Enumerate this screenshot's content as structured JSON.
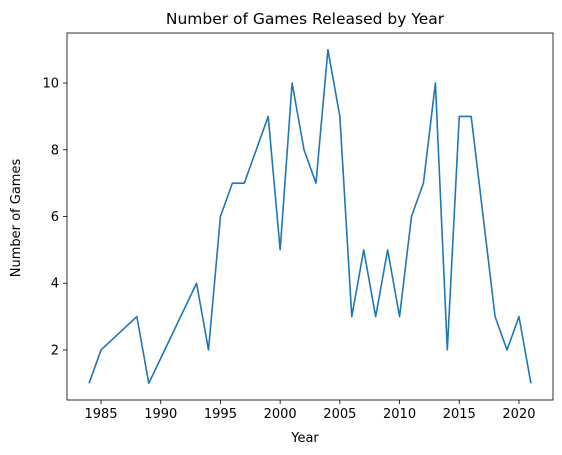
{
  "chart_data": {
    "type": "line",
    "title": "Number of Games Released by Year",
    "xlabel": "Year",
    "ylabel": "Number of Games",
    "xlim": [
      1982.15,
      2022.85
    ],
    "ylim": [
      0.5,
      11.5
    ],
    "x_ticks": [
      1985,
      1990,
      1995,
      2000,
      2005,
      2010,
      2015,
      2020
    ],
    "y_ticks": [
      2,
      4,
      6,
      8,
      10
    ],
    "grid": false,
    "series": [
      {
        "color": "#1f77b4",
        "x": [
          1984,
          1985,
          1988,
          1989,
          1993,
          1994,
          1995,
          1996,
          1997,
          1999,
          2000,
          2001,
          2002,
          2003,
          2004,
          2005,
          2006,
          2007,
          2008,
          2009,
          2010,
          2011,
          2012,
          2013,
          2014,
          2015,
          2016,
          2018,
          2019,
          2020,
          2021
        ],
        "y": [
          1,
          2,
          3,
          1,
          4,
          2,
          6,
          7,
          7,
          9,
          5,
          10,
          8,
          7,
          11,
          9,
          3,
          5,
          3,
          5,
          3,
          6,
          7,
          10,
          2,
          9,
          9,
          3,
          2,
          3,
          1
        ]
      }
    ]
  }
}
